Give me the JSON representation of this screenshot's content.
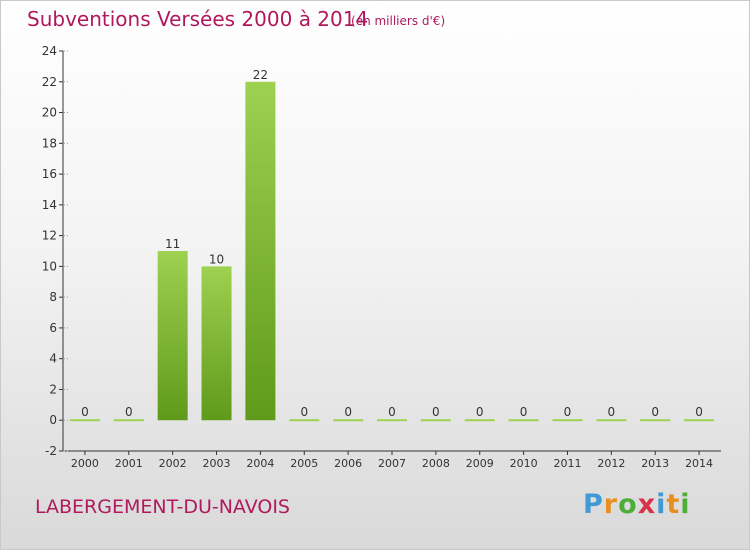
{
  "header": {
    "title": "Subventions Versées 2000 à 2014",
    "unit_note": "(en milliers d'€)"
  },
  "footer": {
    "commune": "LABERGEMENT-DU-NAVOIS",
    "logo": "Proxiti"
  },
  "colors": {
    "accent": "#b0195d",
    "bar_top": "#9ed150",
    "bar_bottom": "#5f9a1a",
    "axis": "#333333",
    "grid": "#9a9a9a"
  },
  "chart_data": {
    "type": "bar",
    "title": "Subventions Versées 2000 à 2014",
    "subtitle": "(en milliers d'€)",
    "xlabel": "",
    "ylabel": "",
    "categories": [
      "2000",
      "2001",
      "2002",
      "2003",
      "2004",
      "2005",
      "2006",
      "2007",
      "2008",
      "2009",
      "2010",
      "2011",
      "2012",
      "2013",
      "2014"
    ],
    "values": [
      0,
      0,
      11,
      10,
      22,
      0,
      0,
      0,
      0,
      0,
      0,
      0,
      0,
      0,
      0
    ],
    "value_labels": [
      "0",
      "0",
      "11",
      "10",
      "22",
      "0",
      "0",
      "0",
      "0",
      "0",
      "0",
      "0",
      "0",
      "0",
      "0"
    ],
    "ylim": [
      -2,
      24
    ],
    "yticks": [
      -2,
      0,
      2,
      4,
      6,
      8,
      10,
      12,
      14,
      16,
      18,
      20,
      22,
      24
    ],
    "grid": "y-axis dashes only",
    "legend": "none"
  }
}
